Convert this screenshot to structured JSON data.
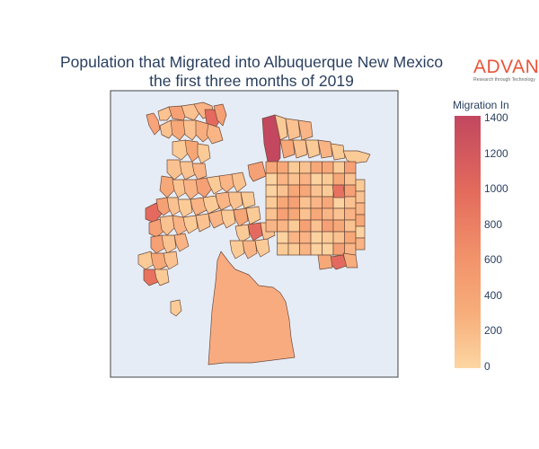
{
  "title": {
    "line1": "Population that Migrated into Albuquerque New Mexico",
    "line2": "the first three months of 2019"
  },
  "logo": {
    "word": "ADVAN",
    "tagline": "Research through Technology"
  },
  "colorbar": {
    "title": "Migration In",
    "ticks": [
      "1400",
      "1200",
      "1000",
      "800",
      "600",
      "400",
      "200",
      "0"
    ],
    "range": [
      0,
      1400
    ],
    "colors": [
      "#fcd6a2",
      "#f7ad7a",
      "#f1916a",
      "#e36b5c",
      "#c2475f"
    ]
  },
  "map": {
    "background": "#e5ecf6",
    "border_color": "#444444",
    "tract_border_color": "#6b4a3a"
  }
}
